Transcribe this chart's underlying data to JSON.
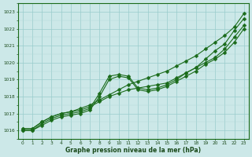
{
  "title": "Graphe pression niveau de la mer (hPa)",
  "xlabel_hours": [
    0,
    1,
    2,
    3,
    4,
    5,
    6,
    7,
    8,
    9,
    10,
    11,
    12,
    13,
    14,
    15,
    16,
    17,
    18,
    19,
    20,
    21,
    22,
    23
  ],
  "ylim": [
    1015.5,
    1023.5
  ],
  "xlim": [
    -0.5,
    23.5
  ],
  "yticks": [
    1016,
    1017,
    1018,
    1019,
    1020,
    1021,
    1022,
    1023
  ],
  "bg_color": "#cce8e8",
  "grid_color_major": "#99cccc",
  "grid_color_minor": "#b3d9d9",
  "line_color": "#1a6b1a",
  "line1": [
    1016.1,
    1016.1,
    1016.5,
    1016.8,
    1017.0,
    1017.1,
    1017.3,
    1017.5,
    1017.8,
    1018.1,
    1018.4,
    1018.7,
    1018.9,
    1019.1,
    1019.3,
    1019.5,
    1019.8,
    1020.1,
    1020.4,
    1020.8,
    1021.2,
    1021.6,
    1022.1,
    1022.9
  ],
  "line2": [
    1016.1,
    1016.1,
    1016.5,
    1016.8,
    1017.0,
    1017.1,
    1017.2,
    1017.4,
    1017.7,
    1018.0,
    1018.2,
    1018.4,
    1018.5,
    1018.6,
    1018.7,
    1018.8,
    1019.1,
    1019.4,
    1019.7,
    1020.2,
    1020.7,
    1021.1,
    1021.9,
    1022.6
  ],
  "line3": [
    1016.0,
    1016.0,
    1016.4,
    1016.7,
    1016.9,
    1017.0,
    1017.1,
    1017.3,
    1018.2,
    1019.2,
    1019.3,
    1019.2,
    1018.5,
    1018.4,
    1018.5,
    1018.7,
    1019.0,
    1019.4,
    1019.7,
    1020.0,
    1020.3,
    1020.8,
    1021.5,
    1022.2
  ],
  "line4": [
    1016.0,
    1016.0,
    1016.3,
    1016.6,
    1016.8,
    1016.9,
    1017.0,
    1017.2,
    1018.0,
    1019.0,
    1019.2,
    1019.1,
    1018.4,
    1018.3,
    1018.4,
    1018.6,
    1018.9,
    1019.2,
    1019.5,
    1019.9,
    1020.2,
    1020.6,
    1021.2,
    1022.0
  ],
  "marker": "D",
  "marker_size": 2.5,
  "linewidth": 0.8
}
